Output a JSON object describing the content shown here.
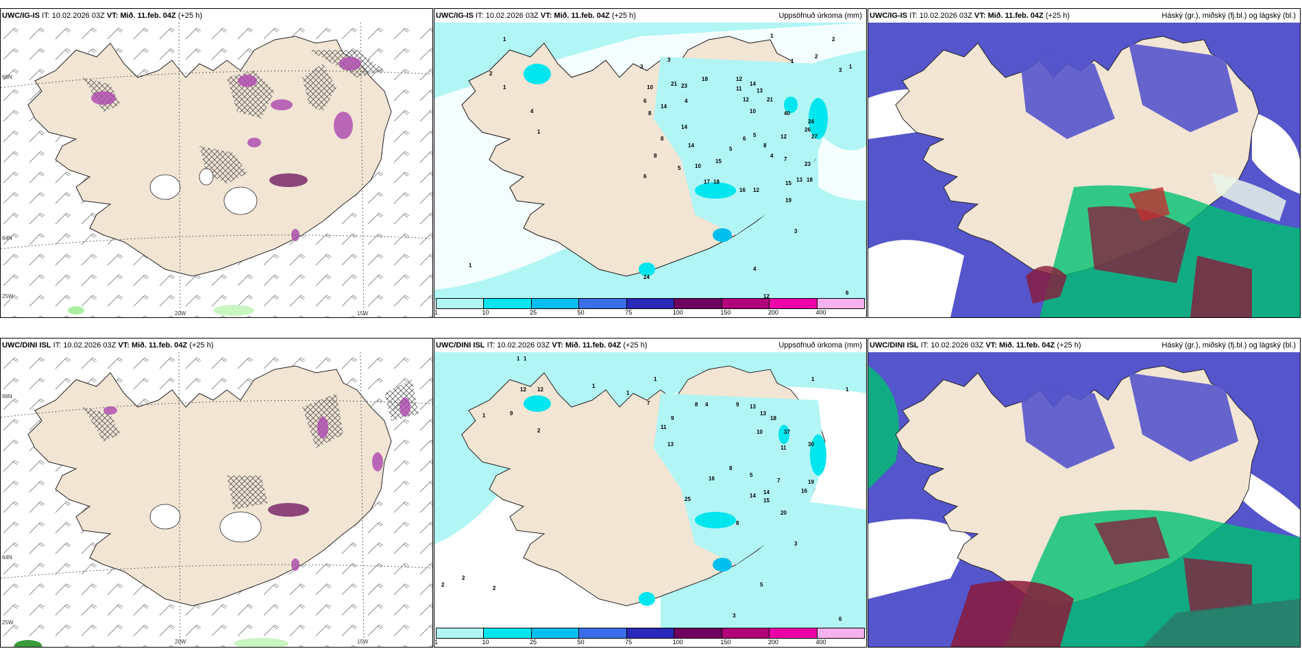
{
  "rows": [
    {
      "model": "UWC/IG-IS",
      "it_label": "IT:",
      "it_value": "10.02.2026 03Z",
      "vt_label": "VT:",
      "vt_value": "Mið. 11.feb. 04Z",
      "lead": "(+25 h)"
    },
    {
      "model": "UWC/DINI ISL",
      "it_label": "IT:",
      "it_value": "10.02.2026 03Z",
      "vt_label": "VT:",
      "vt_value": "Mið. 11.feb. 04Z",
      "lead": "(+25 h)"
    }
  ],
  "titles": {
    "precip": "Uppsöfnuð úrkoma (mm)",
    "cloud": "Háský (gr.), miðský (fj.bl.) og lágský (bl.)"
  },
  "axis_labels": {
    "lat_66": "66N",
    "lat_64": "64N",
    "lon_25": "25W",
    "lon_20": "20W",
    "lon_15": "15W"
  },
  "colorbar": {
    "labels": [
      "1",
      "10",
      "25",
      "50",
      "75",
      "100",
      "150",
      "200",
      "400"
    ],
    "colors": [
      "#b2f5f5",
      "#00e5ee",
      "#00bfee",
      "#3a6ee8",
      "#2a2ab8",
      "#700060",
      "#b0007a",
      "#ee00a8",
      "#f5b2ee"
    ]
  },
  "colors": {
    "land": "#f2e5d4",
    "precip_low": "#b2f5f5",
    "precip_mid": "#00e5ee",
    "precip_high": "#00bfee",
    "high_cloud": "#5555cc",
    "mid_cloud": "#00c070",
    "low_cloud": "#8b1a3a",
    "wind_precip": "#b050b0"
  },
  "precip_values_top": [
    "1",
    "2",
    "1",
    "3",
    "3",
    "10",
    "21",
    "23",
    "18",
    "12",
    "11",
    "14",
    "13",
    "12",
    "21",
    "10",
    "40",
    "24",
    "26",
    "27",
    "23",
    "12",
    "8",
    "4",
    "6",
    "14",
    "8",
    "14",
    "14",
    "5",
    "15",
    "17",
    "18",
    "16",
    "19",
    "15",
    "13",
    "18",
    "7",
    "6",
    "8",
    "4",
    "6",
    "10",
    "12",
    "8",
    "1",
    "24",
    "3",
    "4",
    "12",
    "6",
    "1",
    "2",
    "1",
    "2",
    "3",
    "1",
    "1",
    "5",
    "4",
    "5"
  ],
  "precip_values_bottom": [
    "1",
    "1",
    "1",
    "1",
    "12",
    "12",
    "9",
    "2",
    "1",
    "1",
    "1",
    "7",
    "11",
    "13",
    "9",
    "4",
    "8",
    "9",
    "13",
    "18",
    "11",
    "10",
    "8",
    "37",
    "30",
    "19",
    "16",
    "14",
    "25",
    "16",
    "15",
    "20",
    "8",
    "2",
    "2",
    "2",
    "3",
    "5",
    "3",
    "6",
    "1",
    "5",
    "13",
    "7",
    "14"
  ]
}
